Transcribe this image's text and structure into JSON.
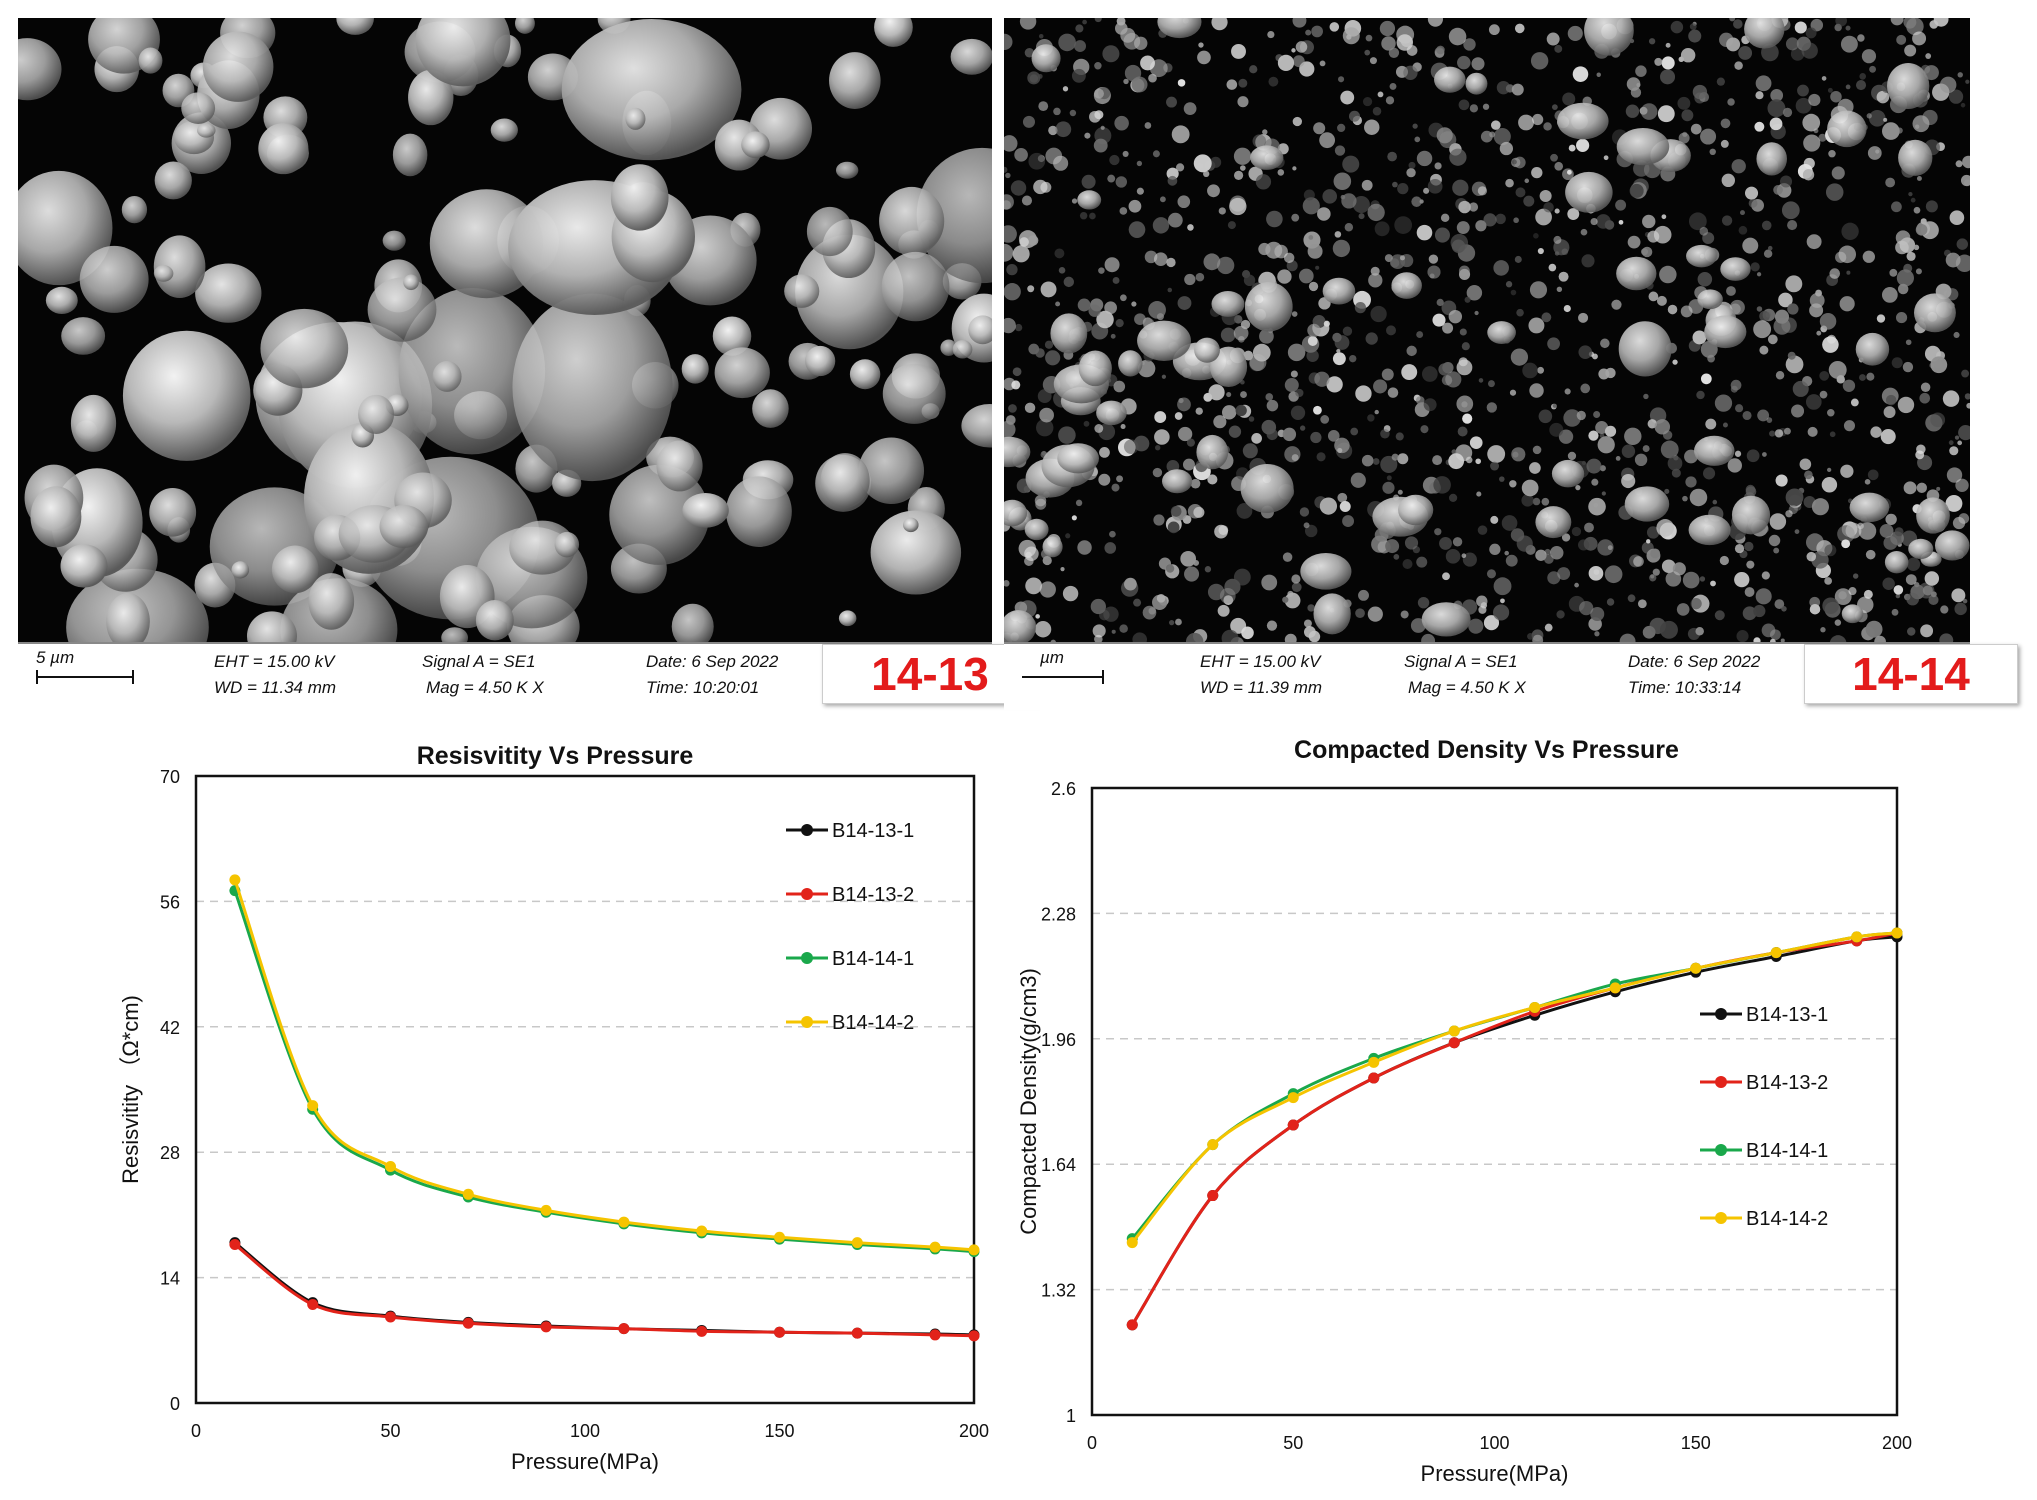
{
  "sem_images": [
    {
      "scale_label": "5 µm",
      "eht": "EHT = 15.00 kV",
      "wd": "WD = 11.34 mm",
      "signal": "Signal A = SE1",
      "mag": "Mag =    4.50 K X",
      "date": "Date: 6 Sep 2022",
      "time": "Time: 10:20:01",
      "sample_id": "14-13"
    },
    {
      "scale_label": "µm",
      "eht": "EHT = 15.00 kV",
      "wd": "WD = 11.39 mm",
      "signal": "Signal A = SE1",
      "mag": "Mag =    4.50 K X",
      "date": "Date: 6 Sep 2022",
      "time": "Time: 10:33:14",
      "sample_id": "14-14"
    }
  ],
  "chart_data": [
    {
      "type": "line",
      "title": "Resisvitity Vs Pressure",
      "xlabel": "Pressure(MPa)",
      "ylabel": "Resisvitity （Ω*cm)",
      "xlim": [
        0,
        200
      ],
      "ylim": [
        0,
        70
      ],
      "xticks": [
        0,
        50,
        100,
        150,
        200
      ],
      "yticks": [
        0,
        14,
        28,
        42,
        56,
        70
      ],
      "grid": "horizontal dashed",
      "legend_position": "top-right",
      "x": [
        10,
        30,
        50,
        70,
        90,
        110,
        130,
        150,
        170,
        190,
        200
      ],
      "series": [
        {
          "name": "B14-13-1",
          "color": "#111111",
          "values": [
            17.9,
            11.2,
            9.7,
            9.0,
            8.6,
            8.3,
            8.1,
            7.9,
            7.8,
            7.7,
            7.6
          ]
        },
        {
          "name": "B14-13-2",
          "color": "#e2231a",
          "values": [
            17.7,
            11.0,
            9.6,
            8.9,
            8.5,
            8.3,
            8.0,
            7.9,
            7.8,
            7.6,
            7.5
          ]
        },
        {
          "name": "B14-14-1",
          "color": "#1aa84b",
          "values": [
            57.2,
            32.8,
            26.0,
            23.0,
            21.3,
            20.0,
            19.0,
            18.3,
            17.7,
            17.2,
            16.9
          ]
        },
        {
          "name": "B14-14-2",
          "color": "#f5c400",
          "values": [
            58.4,
            33.2,
            26.4,
            23.3,
            21.5,
            20.2,
            19.2,
            18.5,
            17.9,
            17.4,
            17.1
          ]
        }
      ]
    },
    {
      "type": "line",
      "title": "Compacted Density Vs Pressure",
      "xlabel": "Pressure(MPa)",
      "ylabel": "Compacted Density(g/cm3)",
      "xlim": [
        0,
        200
      ],
      "ylim": [
        1,
        2.6
      ],
      "xticks": [
        0,
        50,
        100,
        150,
        200
      ],
      "yticks": [
        1,
        1.32,
        1.64,
        1.96,
        2.28,
        2.6
      ],
      "grid": "horizontal dashed",
      "legend_position": "right",
      "x": [
        10,
        30,
        50,
        70,
        90,
        110,
        130,
        150,
        170,
        190,
        200
      ],
      "series": [
        {
          "name": "B14-13-1",
          "color": "#111111",
          "values": [
            1.23,
            1.56,
            1.74,
            1.86,
            1.95,
            2.02,
            2.08,
            2.13,
            2.17,
            2.21,
            2.22
          ]
        },
        {
          "name": "B14-13-2",
          "color": "#e2231a",
          "values": [
            1.23,
            1.56,
            1.74,
            1.86,
            1.95,
            2.03,
            2.09,
            2.14,
            2.18,
            2.21,
            2.23
          ]
        },
        {
          "name": "B14-14-1",
          "color": "#1aa84b",
          "values": [
            1.45,
            1.69,
            1.82,
            1.91,
            1.98,
            2.04,
            2.1,
            2.14,
            2.18,
            2.22,
            2.23
          ]
        },
        {
          "name": "B14-14-2",
          "color": "#f5c400",
          "values": [
            1.44,
            1.69,
            1.81,
            1.9,
            1.98,
            2.04,
            2.09,
            2.14,
            2.18,
            2.22,
            2.23
          ]
        }
      ]
    }
  ]
}
